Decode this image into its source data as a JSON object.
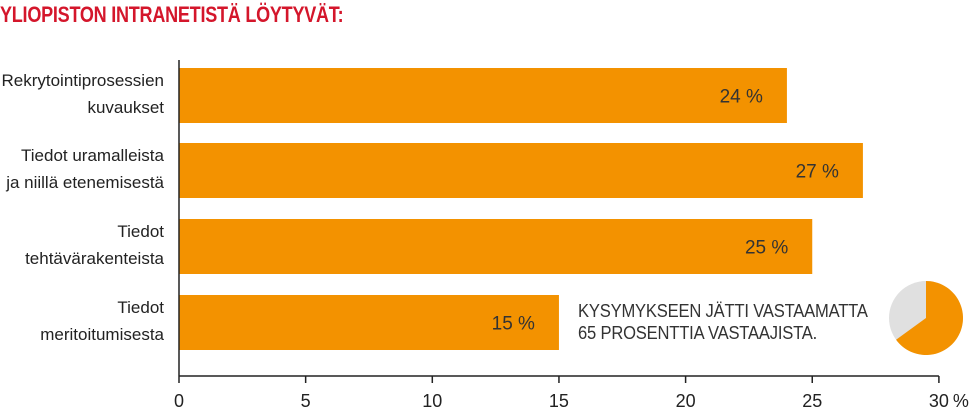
{
  "title": "YLIOPISTON INTRANETISTÄ LÖYTYVÄT:",
  "note": {
    "line1": "KYSYMYKSEEN JÄTTI VASTAAMATTA",
    "line2": "65 PROSENTTIA VASTAAJISTA."
  },
  "colors": {
    "bar": "#f39200",
    "title": "#d4162b",
    "pie_rest": "#e0e0e0"
  },
  "chart_data": {
    "type": "bar",
    "orientation": "horizontal",
    "categories": [
      [
        "Rekrytointiprosessien",
        "kuvaukset"
      ],
      [
        "Tiedot uramalleista",
        "ja niillä etenemisestä"
      ],
      [
        "Tiedot",
        "tehtävärakenteista"
      ],
      [
        "Tiedot",
        "meritoitumisesta"
      ]
    ],
    "values": [
      24,
      27,
      25,
      15
    ],
    "data_labels": [
      "24 %",
      "27 %",
      "25 %",
      "15 %"
    ],
    "xlim": [
      0,
      30
    ],
    "xticks": [
      0,
      5,
      10,
      15,
      20,
      25,
      30
    ],
    "xtick_labels": [
      "0",
      "5",
      "10",
      "15",
      "20",
      "25",
      "30"
    ],
    "x_unit": "%",
    "grid": false
  },
  "pie": {
    "values": [
      65,
      35
    ]
  }
}
